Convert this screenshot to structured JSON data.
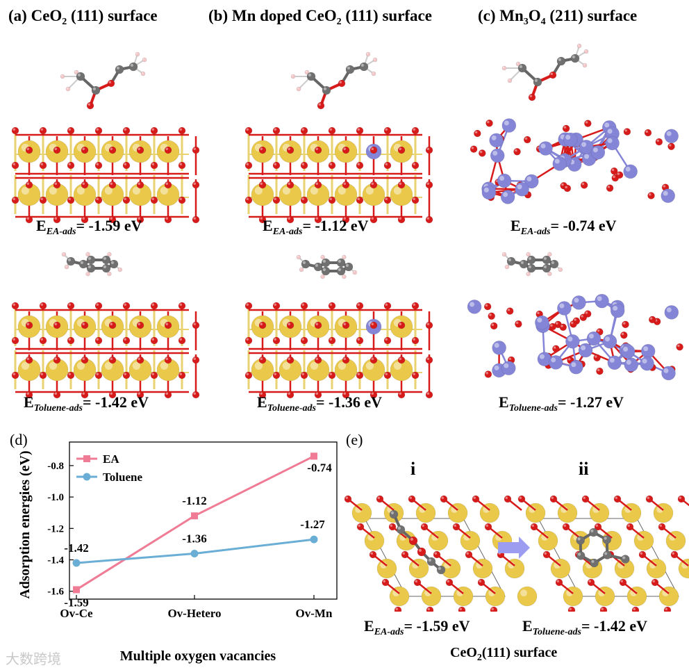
{
  "panels": {
    "a": {
      "label": "(a)",
      "title_pre": "CeO",
      "title_sub": "2",
      "title_post": " (111) surface"
    },
    "b": {
      "label": "(b)",
      "title_pre": "Mn doped CeO",
      "title_sub": "2",
      "title_post": " (111) surface"
    },
    "c": {
      "label": "(c)",
      "title_pre": "Mn",
      "title_sub1": "3",
      "title_mid": "O",
      "title_sub2": "4",
      "title_post": " (211) surface"
    }
  },
  "energies": {
    "E": "E",
    "ea_sub": "EA-ads",
    "tol_sub": "Toluene-ads",
    "a_ea": "= -1.59 eV",
    "b_ea": "= -1.12 eV",
    "c_ea": "= -0.74 eV",
    "a_tol": "= -1.42 eV",
    "b_tol": "= -1.36 eV",
    "c_tol": "= -1.27 eV"
  },
  "panel_d": {
    "label": "(d)"
  },
  "panel_e": {
    "label": "(e)",
    "i": "i",
    "ii": "ii",
    "ea": "= -1.59 eV",
    "tol": "= -1.42 eV",
    "caption_pre": "CeO",
    "caption_sub": "2",
    "caption_post": "(111) surface"
  },
  "chart_data": {
    "type": "line",
    "categories": [
      "Ov-Ce",
      "Ov-Hetero",
      "Ov-Mn"
    ],
    "xlabel": "Multiple oxygen vacancies",
    "ylabel": "Adsorption energies (eV)",
    "ylim": [
      -1.65,
      -0.65
    ],
    "yticks": [
      "-1.6",
      "-1.4",
      "-1.2",
      "-1.0",
      "-0.8"
    ],
    "legend_position": "top-left",
    "series": [
      {
        "name": "EA",
        "values": [
          -1.59,
          -1.12,
          -0.74
        ],
        "labels": [
          "-1.59",
          "-1.12",
          "-0.74"
        ],
        "color": "#f07b94",
        "marker": "square"
      },
      {
        "name": "Toluene",
        "values": [
          -1.42,
          -1.36,
          -1.27
        ],
        "labels": [
          "-1.42",
          "-1.36",
          "-1.27"
        ],
        "color": "#6aaed6",
        "marker": "circle"
      }
    ]
  },
  "watermark": "大数跨境",
  "colors": {
    "ce": "#e9c84a",
    "o": "#d71a1a",
    "mn": "#8585d8",
    "c": "#707070",
    "h": "#f4c8c8"
  }
}
